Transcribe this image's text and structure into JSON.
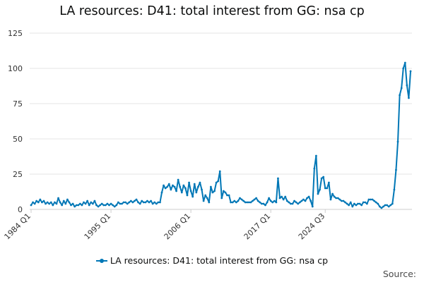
{
  "chart_data": {
    "type": "line",
    "title": "LA resources: D41: total interest from GG: nsa cp",
    "xlabel": "",
    "ylabel": "",
    "ylim": [
      0,
      125
    ],
    "yticks": [
      0,
      25,
      50,
      75,
      100,
      125
    ],
    "x_tick_labels": [
      "1984 Q1",
      "1995 Q1",
      "2006 Q1",
      "2017 Q1",
      "2024 Q3"
    ],
    "x_start": "1984 Q1",
    "x_end": "2024 Q3",
    "grid": true,
    "legend_position": "bottom",
    "series": [
      {
        "name": "LA resources: D41: total interest from GG: nsa cp",
        "color": "#0077b6",
        "values": [
          3,
          5,
          4,
          6,
          5,
          7,
          5,
          6,
          4,
          5,
          4,
          5,
          3,
          5,
          4,
          8,
          5,
          3,
          6,
          4,
          7,
          5,
          3,
          4,
          2,
          3,
          3,
          4,
          3,
          5,
          4,
          6,
          3,
          5,
          4,
          6,
          3,
          2,
          3,
          4,
          3,
          3,
          4,
          3,
          4,
          3,
          2,
          3,
          5,
          4,
          4,
          5,
          5,
          4,
          5,
          6,
          5,
          6,
          7,
          5,
          4,
          6,
          5,
          5,
          6,
          5,
          6,
          4,
          5,
          4,
          5,
          5,
          12,
          17,
          15,
          16,
          18,
          14,
          17,
          16,
          13,
          21,
          16,
          12,
          17,
          15,
          10,
          19,
          13,
          9,
          18,
          12,
          16,
          19,
          14,
          6,
          10,
          8,
          5,
          16,
          12,
          13,
          19,
          20,
          27,
          8,
          13,
          12,
          10,
          10,
          5,
          5,
          6,
          5,
          6,
          8,
          7,
          6,
          5,
          5,
          5,
          5,
          6,
          7,
          8,
          6,
          5,
          4,
          4,
          3,
          5,
          8,
          6,
          5,
          6,
          5,
          22,
          8,
          9,
          7,
          9,
          6,
          5,
          4,
          4,
          6,
          5,
          4,
          5,
          6,
          7,
          6,
          8,
          9,
          6,
          2,
          29,
          38,
          11,
          14,
          22,
          23,
          15,
          15,
          19,
          7,
          11,
          9,
          8,
          8,
          7,
          6,
          6,
          5,
          4,
          3,
          5,
          2,
          4,
          3,
          4,
          4,
          3,
          5,
          5,
          4,
          7,
          7,
          7,
          6,
          5,
          4,
          2,
          1,
          2,
          3,
          3,
          2,
          3,
          4,
          14,
          28,
          48,
          81,
          86,
          100,
          104,
          88,
          79,
          98
        ]
      }
    ],
    "source_label": "Source:"
  }
}
